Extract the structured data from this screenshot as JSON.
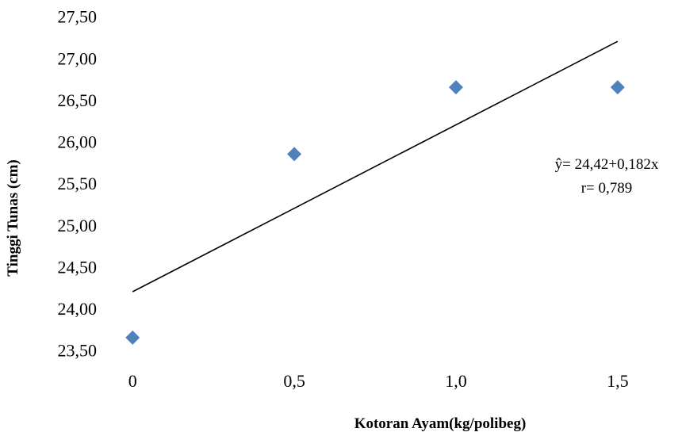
{
  "chart_data": {
    "type": "scatter",
    "xlabel": "Kotoran Ayam(kg/polibeg)",
    "ylabel": "Tinggi Tunas (cm)",
    "x_ticks": [
      "0",
      "0,5",
      "1,0",
      "1,5"
    ],
    "x_tick_values": [
      0,
      0.5,
      1.0,
      1.5
    ],
    "y_ticks": [
      "23,50",
      "24,00",
      "24,50",
      "25,00",
      "25,50",
      "26,00",
      "26,50",
      "27,00",
      "27,50"
    ],
    "y_tick_values": [
      23.5,
      24.0,
      24.5,
      25.0,
      25.5,
      26.0,
      26.5,
      27.0,
      27.5
    ],
    "xlim": [
      -0.03,
      1.65
    ],
    "ylim": [
      23.25,
      27.62
    ],
    "series": [
      {
        "x": [
          0,
          0.5,
          1.0,
          1.5
        ],
        "y": [
          23.65,
          25.85,
          26.65,
          26.65
        ],
        "color": "#4F81BD",
        "marker": "diamond"
      }
    ],
    "trendline": {
      "x": [
        0,
        1.5
      ],
      "y": [
        24.2,
        27.2
      ],
      "color": "#000000"
    },
    "annotations": [
      "ŷ= 24,42+0,182x",
      "r= 0,789"
    ]
  }
}
